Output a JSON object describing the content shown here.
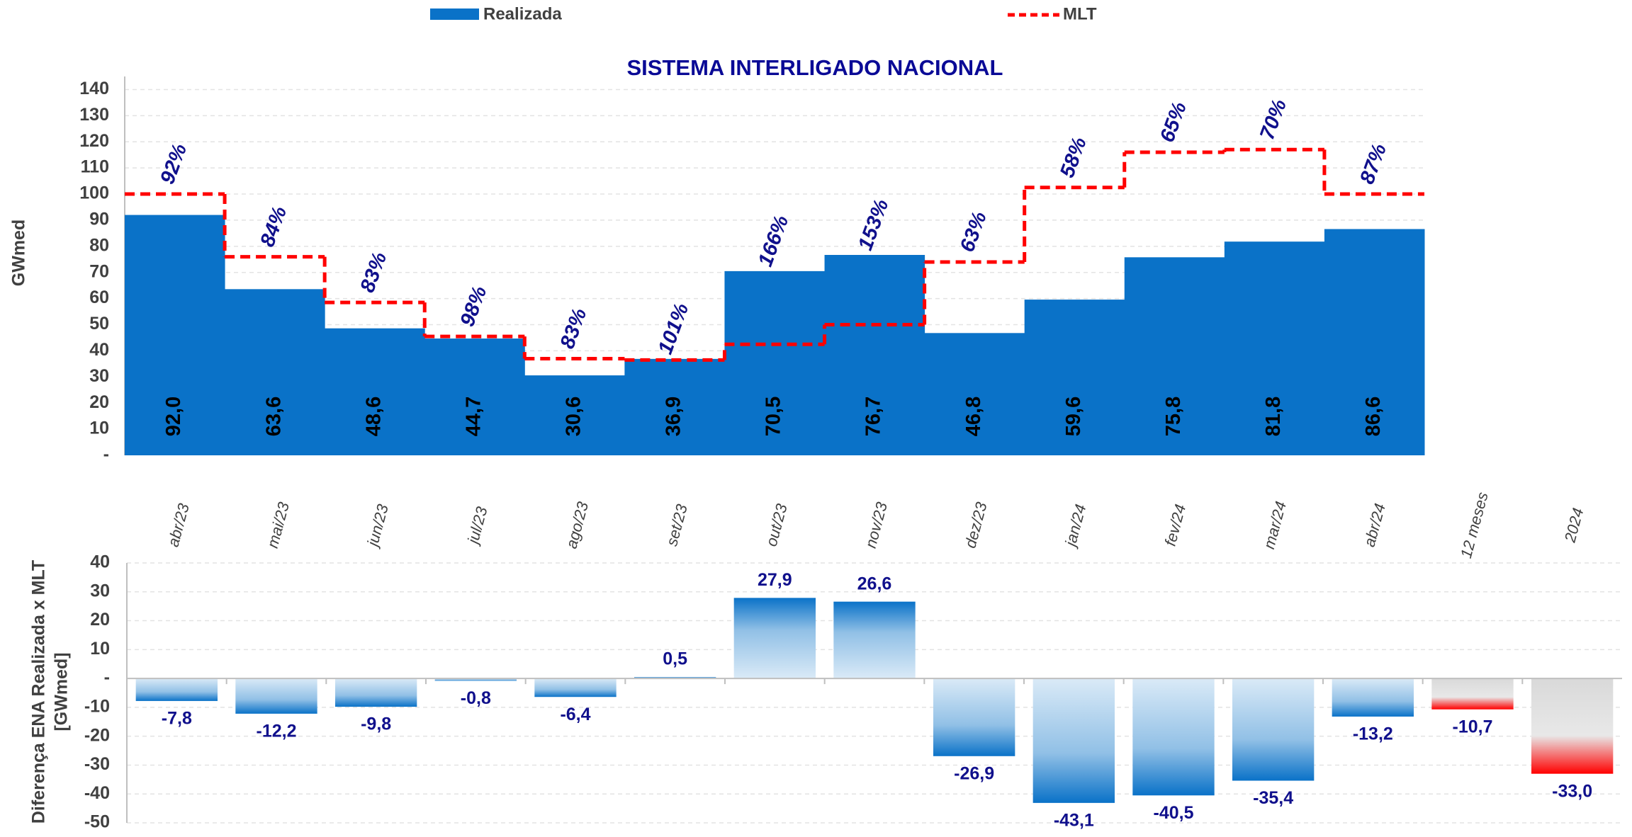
{
  "chart_data": [
    {
      "type": "step",
      "title": "SISTEMA INTERLIGADO NACIONAL",
      "ylabel": "GWmed",
      "ylim": [
        0,
        145
      ],
      "yticks": [
        {
          "value": 0,
          "label": "-"
        },
        10,
        20,
        30,
        40,
        50,
        60,
        70,
        80,
        90,
        100,
        110,
        120,
        130,
        140
      ],
      "grid": true,
      "legend": "top",
      "series": [
        {
          "name": "Realizada",
          "color": "#0a72c8",
          "values": [
            92.0,
            63.6,
            48.6,
            44.7,
            30.6,
            36.9,
            70.5,
            76.7,
            46.8,
            59.6,
            75.8,
            81.8,
            86.6
          ],
          "value_labels": [
            "92,0",
            "63,6",
            "48,6",
            "44,7",
            "30,6",
            "36,9",
            "70,5",
            "76,7",
            "46,8",
            "59,6",
            "75,8",
            "81,8",
            "86,6"
          ]
        },
        {
          "name": "MLT",
          "color": "#ff0000",
          "values": [
            100,
            76,
            58.5,
            45.5,
            37,
            36.5,
            42.5,
            50,
            74,
            102.5,
            116,
            117,
            100
          ]
        }
      ],
      "ratio_values": [
        92,
        84,
        83,
        98,
        83,
        101,
        166,
        153,
        63,
        58,
        65,
        70,
        87
      ],
      "ratio_labels": [
        "92%",
        "84%",
        "83%",
        "98%",
        "83%",
        "101%",
        "166%",
        "153%",
        "63%",
        "58%",
        "65%",
        "70%",
        "87%"
      ]
    },
    {
      "type": "bar",
      "ylabel": [
        "Diferença ENA Realizada x MLT",
        "[GWmed]"
      ],
      "categories": [
        "abr/23",
        "mai/23",
        "jun/23",
        "jul/23",
        "ago/23",
        "set/23",
        "out/23",
        "nov/23",
        "dez/23",
        "jan/24",
        "fev/24",
        "mar/24",
        "abr/24",
        "12 meses",
        "2024"
      ],
      "values": [
        -7.8,
        -12.2,
        -9.8,
        -0.8,
        -6.4,
        0.5,
        27.9,
        26.6,
        -26.9,
        -43.1,
        -40.5,
        -35.4,
        -13.2,
        -10.7,
        -33.0
      ],
      "value_labels": [
        "-7,8",
        "-12,2",
        "-9,8",
        "-0,8",
        "-6,4",
        "0,5",
        "27,9",
        "26,6",
        "-26,9",
        "-43,1",
        "-40,5",
        "-35,4",
        "-13,2",
        "-10,7",
        "-33,0"
      ],
      "colors": [
        "#0a72c8",
        "#0a72c8",
        "#0a72c8",
        "#0a72c8",
        "#0a72c8",
        "#0a72c8",
        "#0a72c8",
        "#0a72c8",
        "#0a72c8",
        "#0a72c8",
        "#0a72c8",
        "#0a72c8",
        "#0a72c8",
        "#ff0000",
        "#ff0000"
      ],
      "ylim": [
        -50,
        40
      ],
      "yticks": [
        -50,
        -40,
        -30,
        -20,
        -10,
        {
          "value": 0,
          "label": "-"
        },
        10,
        20,
        30,
        40
      ],
      "grid": true
    }
  ]
}
